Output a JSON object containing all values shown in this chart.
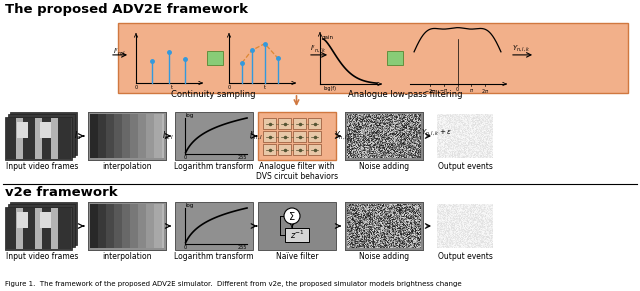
{
  "title_adv2e": "The proposed ADV2E framework",
  "title_v2e": "v2e framework",
  "caption": "Figure 1.  The framework of the proposed ADV2E simulator.  Different from v2e, the proposed simulator models brightness change",
  "bg_color": "#ffffff",
  "salmon_bg": "#f2b08a",
  "adv2e_row_labels": [
    "Input video frames",
    "interpolation",
    "Logarithm transform",
    "Analogue filter with\nDVS circuit behaviors",
    "Noise adding",
    "Output events"
  ],
  "v2e_row_labels": [
    "Input video frames",
    "interpolation",
    "Logarithm transform",
    "Naïve filter",
    "Noise adding",
    "Output events"
  ],
  "top_label_cs": "Continuity sampling",
  "top_label_lp": "Analogue low-pass filtering",
  "figsize": [
    6.4,
    2.91
  ],
  "dpi": 100
}
